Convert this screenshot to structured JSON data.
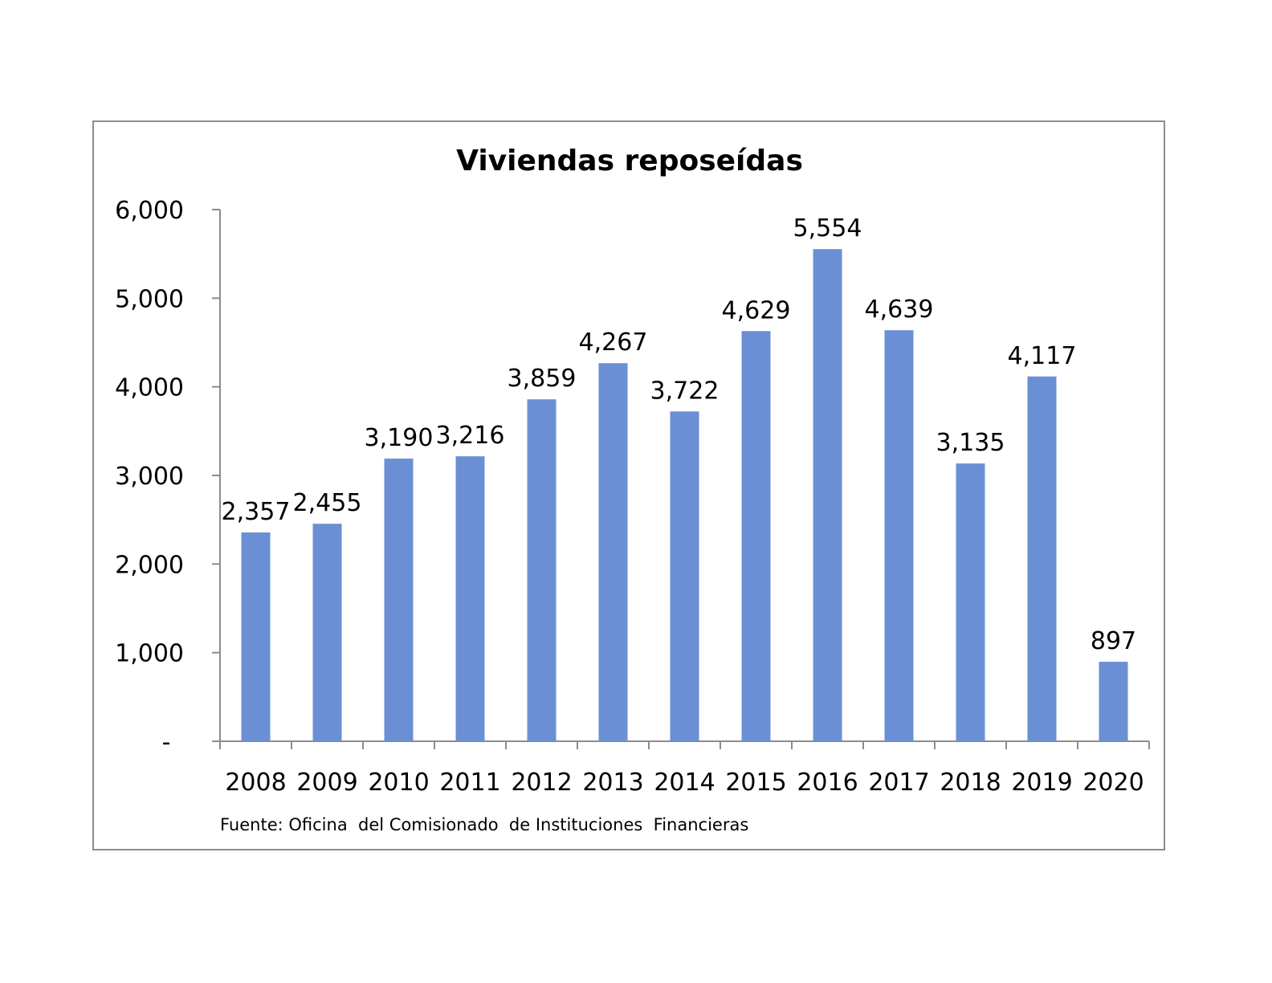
{
  "chart_data": {
    "type": "bar",
    "title": "Viviendas reposeídas",
    "categories": [
      "2008",
      "2009",
      "2010",
      "2011",
      "2012",
      "2013",
      "2014",
      "2015",
      "2016",
      "2017",
      "2018",
      "2019",
      "2020"
    ],
    "values": [
      2357,
      2455,
      3190,
      3216,
      3859,
      4267,
      3722,
      4629,
      5554,
      4639,
      3135,
      4117,
      897
    ],
    "data_labels": [
      "2,357",
      "2,455",
      "3,190",
      "3,216",
      "3,859",
      "4,267",
      "3,722",
      "4,629",
      "5,554",
      "4,639",
      "3,135",
      "4,117",
      "897"
    ],
    "ylim": [
      0,
      6000
    ],
    "yticks": [
      0,
      1000,
      2000,
      3000,
      4000,
      5000,
      6000
    ],
    "ytick_labels": [
      "-",
      "1,000",
      "2,000",
      "3,000",
      "4,000",
      "5,000",
      "6,000"
    ],
    "xlabel": "",
    "ylabel": "",
    "grid": false,
    "legend": "none",
    "bar_color": "#6b8fd4",
    "source_note": "Fuente: Oficina  del Comisionado  de Instituciones  Financieras"
  }
}
